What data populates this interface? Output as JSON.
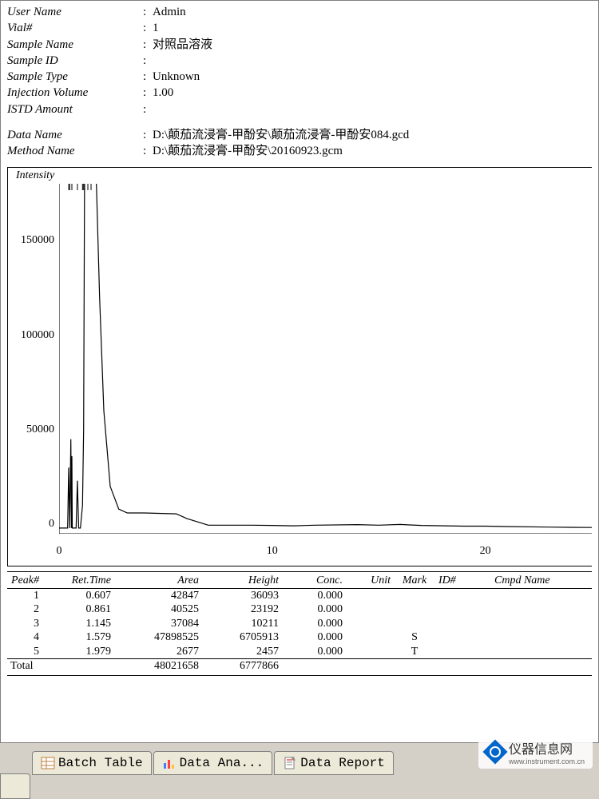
{
  "meta": {
    "user_name_label": "User Name",
    "user_name_value": "Admin",
    "vial_label": "Vial#",
    "vial_value": "1",
    "sample_name_label": "Sample Name",
    "sample_name_value": "对照品溶液",
    "sample_id_label": "Sample ID",
    "sample_id_value": "",
    "sample_type_label": "Sample Type",
    "sample_type_value": "Unknown",
    "inj_vol_label": "Injection Volume",
    "inj_vol_value": "1.00",
    "istd_label": "ISTD Amount",
    "istd_value": "",
    "data_name_label": "Data Name",
    "data_name_value": "D:\\颠茄流浸膏-甲酚安\\颠茄流浸膏-甲酚安084.gcd",
    "method_name_label": "Method Name",
    "method_name_value": "D:\\颠茄流浸膏-甲酚安\\20160923.gcm"
  },
  "chart": {
    "ylabel": "Intensity",
    "ylim": [
      0,
      180000
    ],
    "yticks": [
      0,
      50000,
      100000,
      150000
    ],
    "xlim": [
      0,
      25
    ],
    "xticks": [
      0,
      10,
      20
    ],
    "line_color": "#000000",
    "background_color": "#ffffff",
    "trace": [
      [
        0.0,
        -2000
      ],
      [
        0.4,
        -2000
      ],
      [
        0.45,
        30000
      ],
      [
        0.5,
        -2000
      ],
      [
        0.55,
        45000
      ],
      [
        0.58,
        -2000
      ],
      [
        0.6,
        36000
      ],
      [
        0.62,
        -2000
      ],
      [
        0.8,
        -2000
      ],
      [
        0.86,
        23000
      ],
      [
        0.92,
        -2000
      ],
      [
        1.0,
        -2000
      ],
      [
        1.1,
        10000
      ],
      [
        1.15,
        50000
      ],
      [
        1.2,
        500000
      ],
      [
        1.55,
        500000
      ],
      [
        1.58,
        500000
      ],
      [
        1.65,
        300000
      ],
      [
        1.75,
        180000
      ],
      [
        1.9,
        120000
      ],
      [
        2.1,
        60000
      ],
      [
        2.4,
        20000
      ],
      [
        2.8,
        8000
      ],
      [
        3.2,
        6000
      ],
      [
        4.0,
        6000
      ],
      [
        5.5,
        5500
      ],
      [
        6.0,
        3000
      ],
      [
        7.0,
        -500
      ],
      [
        9.0,
        -500
      ],
      [
        10.0,
        -600
      ],
      [
        11.0,
        -800
      ],
      [
        12.0,
        -500
      ],
      [
        14.0,
        -200
      ],
      [
        15.0,
        -500
      ],
      [
        16.0,
        -100
      ],
      [
        17.0,
        -600
      ],
      [
        19.0,
        -1000
      ],
      [
        20.0,
        -1000
      ],
      [
        21.0,
        -1200
      ],
      [
        23.0,
        -1500
      ],
      [
        24.0,
        -1600
      ],
      [
        25.0,
        -1700
      ]
    ],
    "small_markers_x": [
      0.45,
      0.5,
      0.6,
      0.86,
      1.1,
      1.15,
      1.2,
      1.35,
      1.5
    ]
  },
  "peaks": {
    "headers": {
      "num": "Peak#",
      "ret": "Ret.Time",
      "area": "Area",
      "height": "Height",
      "conc": "Conc.",
      "unit": "Unit",
      "mark": "Mark",
      "id": "ID#",
      "cmpd": "Cmpd Name"
    },
    "rows": [
      {
        "num": "1",
        "ret": "0.607",
        "area": "42847",
        "height": "36093",
        "conc": "0.000",
        "unit": "",
        "mark": "",
        "id": "",
        "cmpd": ""
      },
      {
        "num": "2",
        "ret": "0.861",
        "area": "40525",
        "height": "23192",
        "conc": "0.000",
        "unit": "",
        "mark": "",
        "id": "",
        "cmpd": ""
      },
      {
        "num": "3",
        "ret": "1.145",
        "area": "37084",
        "height": "10211",
        "conc": "0.000",
        "unit": "",
        "mark": "",
        "id": "",
        "cmpd": ""
      },
      {
        "num": "4",
        "ret": "1.579",
        "area": "47898525",
        "height": "6705913",
        "conc": "0.000",
        "unit": "",
        "mark": "S",
        "id": "",
        "cmpd": ""
      },
      {
        "num": "5",
        "ret": "1.979",
        "area": "2677",
        "height": "2457",
        "conc": "0.000",
        "unit": "",
        "mark": "T",
        "id": "",
        "cmpd": ""
      }
    ],
    "total_label": "Total",
    "total_area": "48021658",
    "total_height": "6777866"
  },
  "tabs": {
    "batch": "Batch Table",
    "analyze": "Data Ana...",
    "report": "Data Report"
  },
  "watermark": {
    "text": "仪器信息网",
    "sub": "www.instrument.com.cn"
  }
}
